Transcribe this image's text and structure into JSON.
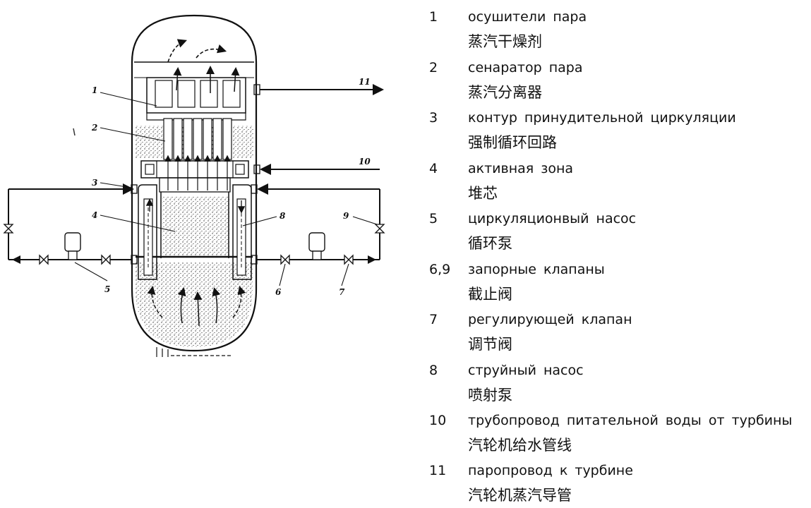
{
  "diagram": {
    "callouts": [
      "1",
      "2",
      "3",
      "4",
      "5",
      "6",
      "7",
      "8",
      "9",
      "10",
      "11"
    ]
  },
  "legend": [
    {
      "num": "1",
      "ru": "осушители пара",
      "zh": "蒸汽干燥剂"
    },
    {
      "num": "2",
      "ru": "сенаратор пара",
      "zh": "蒸汽分离器"
    },
    {
      "num": "3",
      "ru": "контур принудительной циркуляции",
      "zh": "强制循环回路"
    },
    {
      "num": "4",
      "ru": "активная зона",
      "zh": "堆芯"
    },
    {
      "num": "5",
      "ru": "циркуляционвый насос",
      "zh": "循环泵"
    },
    {
      "num": "6,9",
      "ru": "запорные клапаны",
      "zh": "截止阀"
    },
    {
      "num": "7",
      "ru": "регулирующей клапан",
      "zh": "调节阀"
    },
    {
      "num": "8",
      "ru": "струйный насос",
      "zh": "喷射泵"
    },
    {
      "num": "10",
      "ru": "трубопровод питательной воды от турбины",
      "zh": "汽轮机给水管线"
    },
    {
      "num": "11",
      "ru": "паропровод к турбине",
      "zh": "汽轮机蒸汽导管"
    }
  ]
}
